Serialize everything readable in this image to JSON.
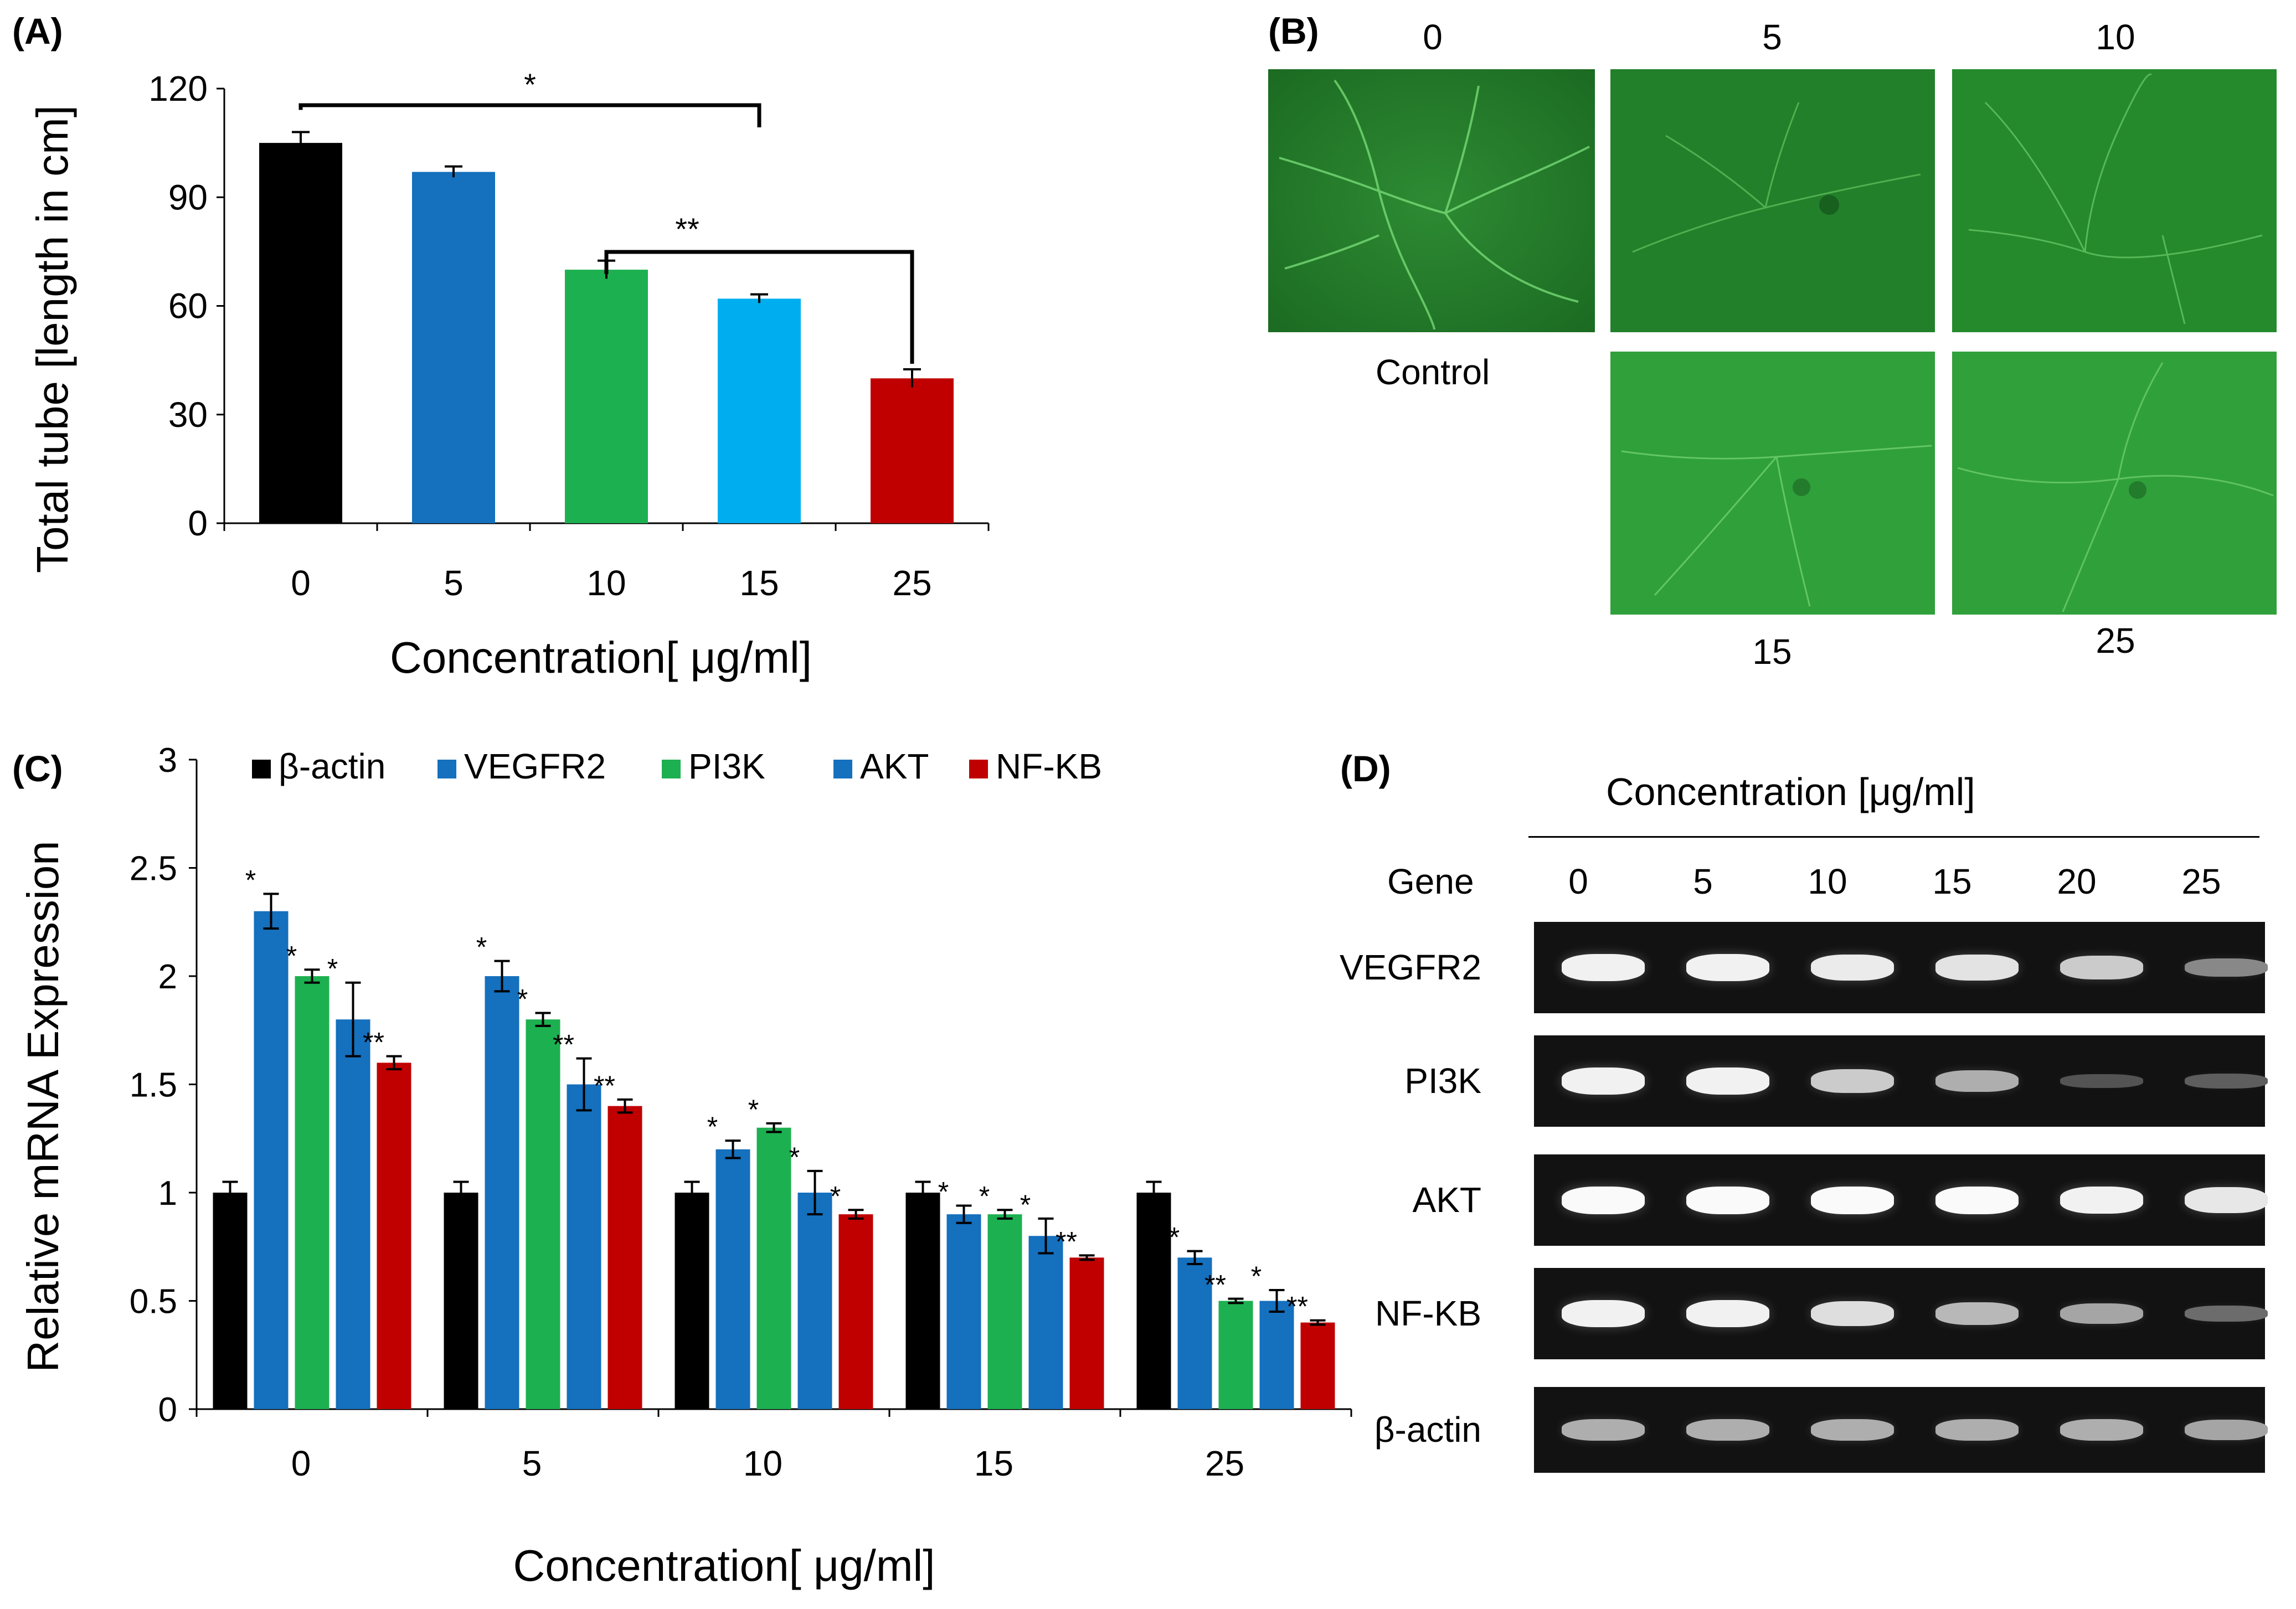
{
  "panel_labels": {
    "a": "(A)",
    "b": "(B)",
    "c": "(C)",
    "d": "(D)"
  },
  "colors": {
    "black": "#000000",
    "dark_blue": "#1570BE",
    "green": "#1DB051",
    "light_blue": "#00AEEF",
    "red": "#C00000"
  },
  "chart_data": [
    {
      "id": "A",
      "type": "bar",
      "title": "",
      "xlabel": "Concentration[ μg/ml]",
      "ylabel": "Total tube [length in cm]",
      "categories": [
        "0",
        "5",
        "10",
        "15",
        "25"
      ],
      "values": [
        105,
        97,
        70,
        62,
        40
      ],
      "errors": [
        3,
        1.5,
        2.5,
        1.2,
        2.5
      ],
      "bar_colors": [
        "#000000",
        "#1570BE",
        "#1DB051",
        "#00AEEF",
        "#C00000"
      ],
      "ylim": [
        0,
        120
      ],
      "yticks": [
        "0",
        "30",
        "60",
        "90",
        "120"
      ],
      "ytick_values": [
        0,
        30,
        60,
        90,
        120
      ],
      "annotations": [
        {
          "from": 0,
          "to": 3,
          "label": "*"
        },
        {
          "from": 2,
          "to": 4,
          "label": "**"
        }
      ]
    },
    {
      "id": "C",
      "type": "bar",
      "title": "",
      "xlabel": "Concentration[ μg/ml]",
      "ylabel": "Relative mRNA Expression",
      "categories": [
        "0",
        "5",
        "10",
        "15",
        "25"
      ],
      "ylim": [
        0,
        3
      ],
      "yticks": [
        "0",
        "0.5",
        "1",
        "1.5",
        "2",
        "2.5",
        "3"
      ],
      "ytick_values": [
        0,
        0.5,
        1,
        1.5,
        2,
        2.5,
        3
      ],
      "legend_position": "top",
      "series": [
        {
          "name": "β-actin",
          "color": "#000000",
          "values": [
            1,
            1,
            1,
            1,
            1
          ],
          "errors": [
            0.05,
            0.05,
            0.05,
            0.05,
            0.05
          ],
          "sig": [
            "",
            "",
            "",
            "",
            ""
          ]
        },
        {
          "name": "VEGFR2",
          "color": "#1570BE",
          "values": [
            2.3,
            2.0,
            1.2,
            0.9,
            0.7
          ],
          "errors": [
            0.08,
            0.07,
            0.04,
            0.04,
            0.03
          ],
          "sig": [
            "*",
            "*",
            "*",
            "*",
            "*"
          ]
        },
        {
          "name": "PI3K",
          "color": "#1DB051",
          "values": [
            2.0,
            1.8,
            1.3,
            0.9,
            0.5
          ],
          "errors": [
            0.03,
            0.03,
            0.02,
            0.02,
            0.01
          ],
          "sig": [
            "*",
            "*",
            "*",
            "*",
            "**"
          ]
        },
        {
          "name": "AKT",
          "color": "#1570BE",
          "values": [
            1.8,
            1.5,
            1.0,
            0.8,
            0.5
          ],
          "errors": [
            0.17,
            0.12,
            0.1,
            0.08,
            0.05
          ],
          "sig": [
            "*",
            "**",
            "*",
            "*",
            "*"
          ]
        },
        {
          "name": "NF-KB",
          "color": "#C00000",
          "values": [
            1.6,
            1.4,
            0.9,
            0.7,
            0.4
          ],
          "errors": [
            0.03,
            0.03,
            0.02,
            0.01,
            0.01
          ],
          "sig": [
            "**",
            "**",
            "*",
            "**",
            "**"
          ]
        }
      ]
    }
  ],
  "panel_b": {
    "top_labels": [
      "0",
      "5",
      "10"
    ],
    "bottom_labels": [
      "15",
      "25"
    ],
    "control_label": "Control"
  },
  "panel_d": {
    "header": "Concentration [μg/ml]",
    "gene_header": "Gene",
    "concentrations": [
      "0",
      "5",
      "10",
      "15",
      "20",
      "25"
    ],
    "genes": [
      "VEGFR2",
      "PI3K",
      "AKT",
      "NF-KB",
      "β-actin"
    ],
    "band_intensity": [
      [
        0.95,
        0.95,
        0.92,
        0.88,
        0.75,
        0.4
      ],
      [
        0.95,
        0.95,
        0.75,
        0.6,
        0.12,
        0.18
      ],
      [
        1.0,
        1.0,
        1.0,
        1.0,
        0.95,
        0.9
      ],
      [
        0.95,
        0.95,
        0.85,
        0.65,
        0.55,
        0.25
      ],
      [
        0.6,
        0.6,
        0.6,
        0.6,
        0.6,
        0.55
      ]
    ]
  }
}
